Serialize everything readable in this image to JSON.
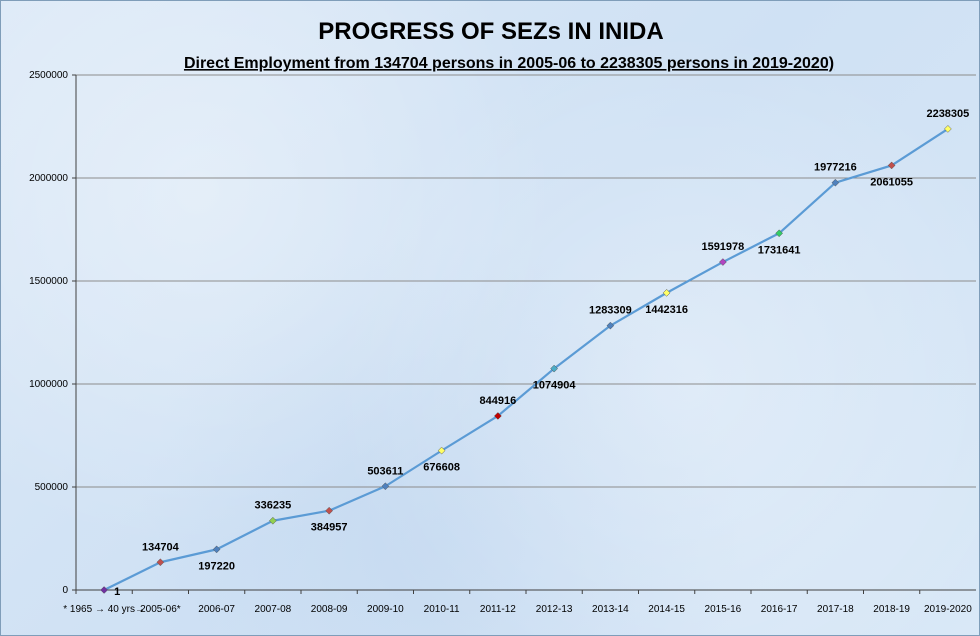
{
  "chart_data": {
    "type": "line",
    "title": "PROGRESS OF SEZs IN INIDA",
    "subtitle": "Direct Employment from 134704 persons in 2005-06 to 2238305 persons in  2019-2020)",
    "xlabel": "",
    "ylabel": "",
    "ylim": [
      0,
      2500000
    ],
    "yticks": [
      "0",
      "500000",
      "1000000",
      "1500000",
      "2000000",
      "2500000"
    ],
    "ytick_values": [
      0,
      500000,
      1000000,
      1500000,
      2000000,
      2500000
    ],
    "grid": true,
    "categories": [
      "* 1965 →  40 yrs→",
      "2005-06*",
      "2006-07",
      "2007-08",
      "2008-09",
      "2009-10",
      "2010-11",
      "2011-12",
      "2012-13",
      "2013-14",
      "2014-15",
      "2015-16",
      "2016-17",
      "2017-18",
      "2018-19",
      "2019-2020"
    ],
    "series": [
      {
        "values": [
          1,
          134704,
          197220,
          336235,
          384957,
          503611,
          676608,
          844916,
          1074904,
          1283309,
          1442316,
          1591978,
          1731641,
          1977216,
          2061055,
          2238305
        ],
        "labels": [
          "1",
          "134704",
          "197220",
          "336235",
          "384957",
          "503611",
          "676608",
          "844916",
          "1074904",
          "1283309",
          "1442316",
          "1591978",
          "1731641",
          "1977216",
          "2061055",
          "2238305"
        ],
        "color": "#5b9bd5"
      }
    ],
    "marker_colors": [
      "#7030a0",
      "#c0504d",
      "#4f81bd",
      "#92d050",
      "#c0504d",
      "#4f81bd",
      "#ffff66",
      "#c00000",
      "#4bacc6",
      "#4f81bd",
      "#ffff66",
      "#b146c2",
      "#33cc66",
      "#4f81bd",
      "#c0504d",
      "#ffff66"
    ],
    "label_position": [
      "right",
      "above",
      "below",
      "above",
      "below",
      "above",
      "below",
      "above",
      "below",
      "above",
      "below",
      "above",
      "below",
      "above",
      "below",
      "above"
    ]
  }
}
